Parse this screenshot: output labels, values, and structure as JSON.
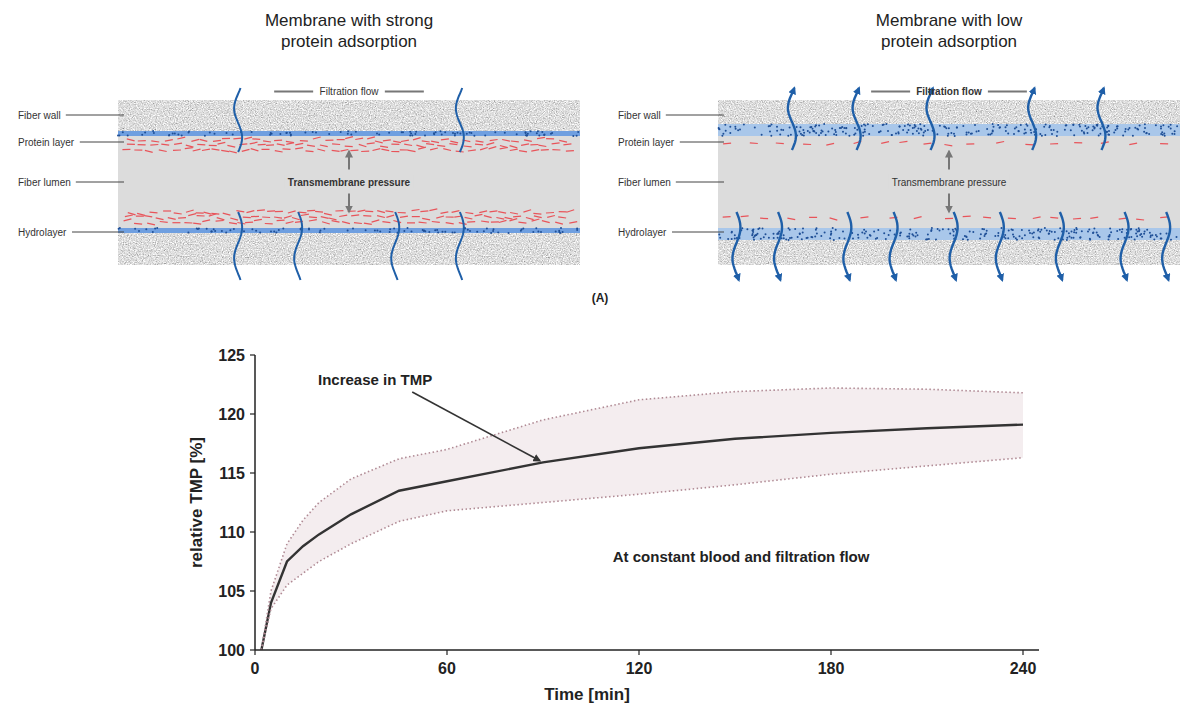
{
  "diagram": {
    "panel_label": "(A)",
    "panels": [
      {
        "title": "Membrane with strong protein adsorption",
        "labels": [
          "Fiber wall",
          "Protein layer",
          "Fiber lumen",
          "Hydrolayer"
        ],
        "flow_label": "Filtration flow",
        "pressure_label": "Transmembrane pressure"
      },
      {
        "title": "Membrane with low protein adsorption",
        "labels": [
          "Fiber wall",
          "Protein layer",
          "Fiber lumen",
          "Hydrolayer"
        ],
        "flow_label": "Filtration flow",
        "pressure_label": "Transmembrane pressure"
      }
    ]
  },
  "chart_data": {
    "type": "line",
    "x": [
      2,
      5,
      10,
      15,
      20,
      30,
      45,
      60,
      90,
      120,
      150,
      180,
      210,
      240
    ],
    "series": [
      {
        "color": "#333333",
        "line_style": "solid",
        "values": [
          100,
          104,
          107.5,
          108.8,
          109.8,
          111.5,
          113.5,
          114.3,
          115.9,
          117.1,
          117.9,
          118.4,
          118.8,
          119.1
        ]
      },
      {
        "color": "#b08a94",
        "line_style": "dotted",
        "values": [
          100,
          105,
          109,
          111,
          112.5,
          114.5,
          116.2,
          117,
          119.5,
          121.2,
          121.9,
          122.2,
          122.1,
          121.8
        ]
      },
      {
        "color": "#b08a94",
        "line_style": "dotted",
        "values": [
          100,
          103.5,
          105.5,
          106.5,
          107.5,
          109,
          110.9,
          111.8,
          112.5,
          113.2,
          114,
          114.9,
          115.6,
          116.3
        ]
      }
    ],
    "xlabel": "Time [min]",
    "ylabel": "relative TMP [%]",
    "xlim": [
      0,
      245
    ],
    "ylim": [
      100,
      125
    ],
    "xticks": [
      0,
      60,
      120,
      180,
      240
    ],
    "yticks": [
      100,
      105,
      110,
      115,
      120,
      125
    ],
    "grid": false,
    "annotations": [
      {
        "text": "Increase in TMP",
        "x": 90,
        "y": 115.9
      },
      {
        "text": "At constant blood and filtration flow"
      }
    ]
  }
}
